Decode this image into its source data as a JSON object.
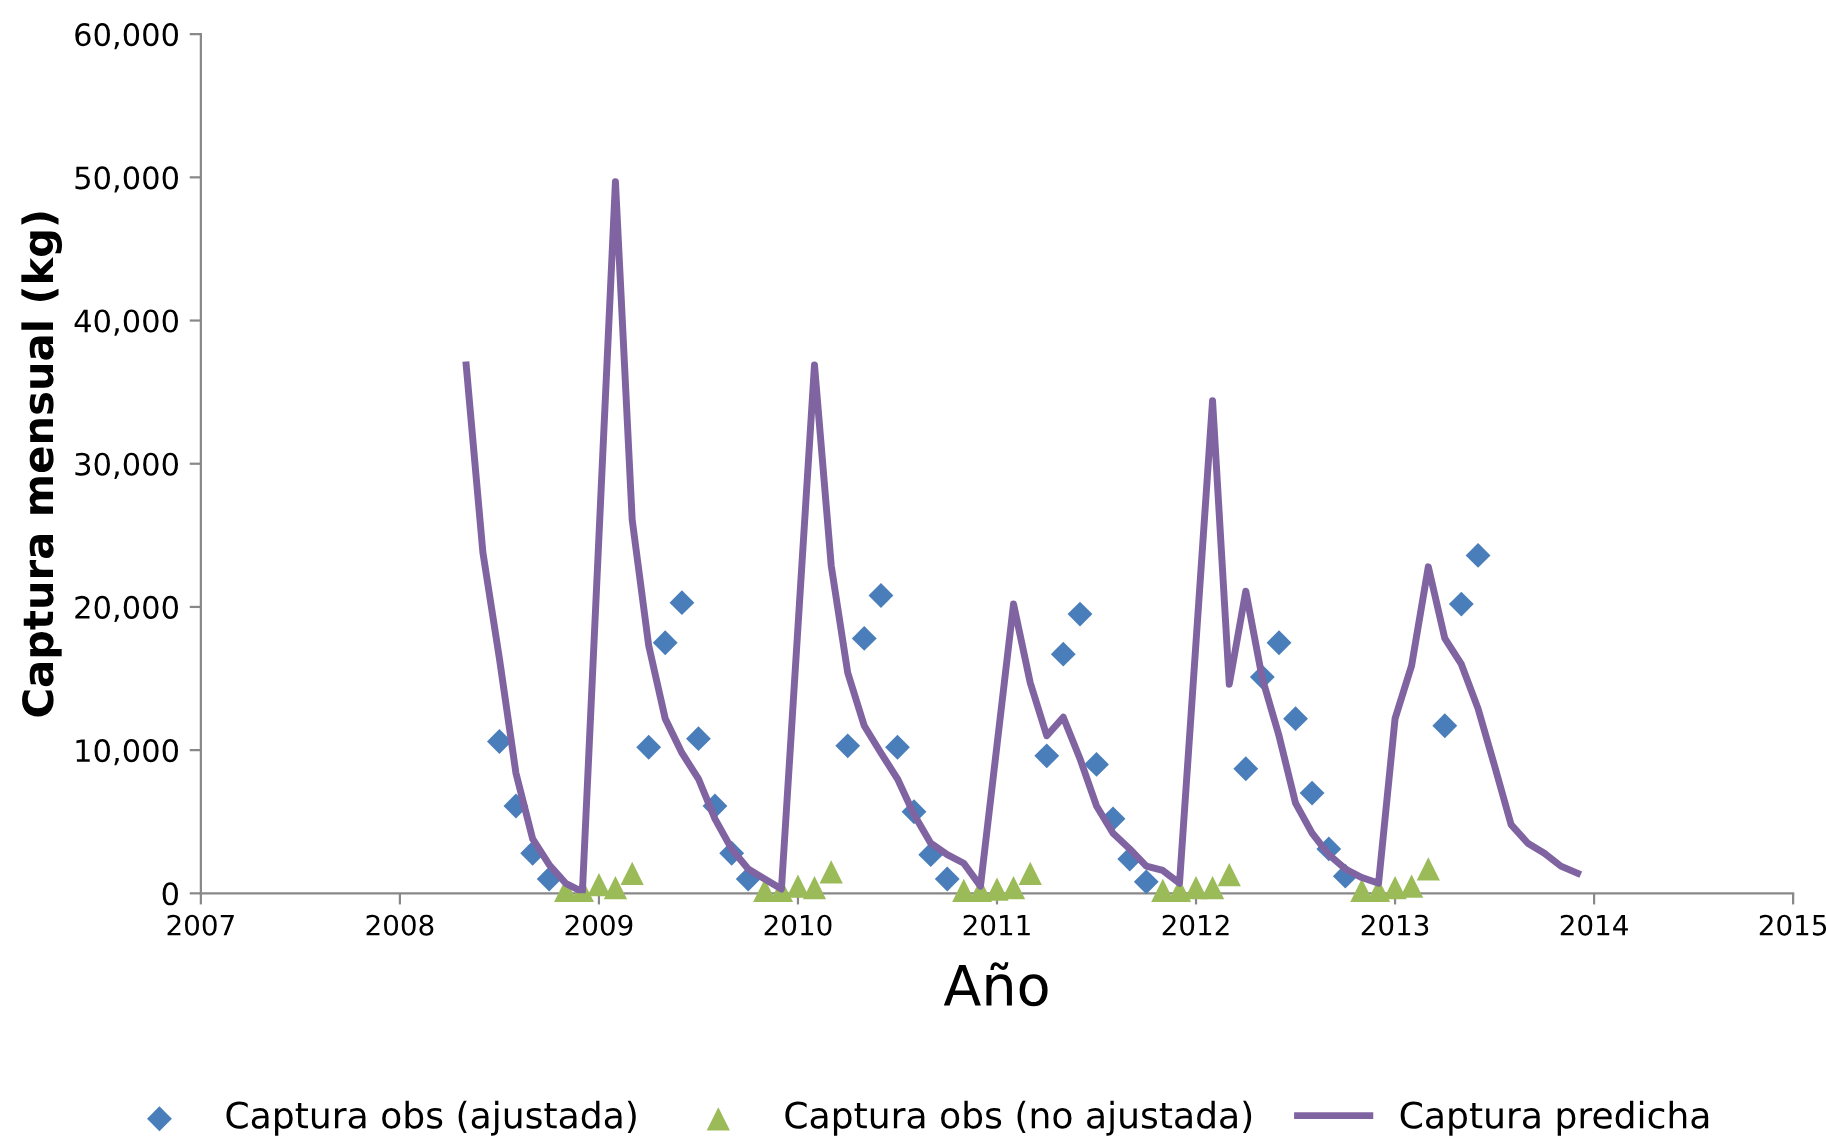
{
  "chart_data": {
    "type": "scatter",
    "xlabel": "Año",
    "ylabel": "Captura mensual (kg)",
    "xlim": [
      2007,
      2015
    ],
    "xticks": [
      2007,
      2008,
      2009,
      2010,
      2011,
      2012,
      2013,
      2014,
      2015
    ],
    "ylim": [
      0,
      60000
    ],
    "yticks": [
      {
        "value": 0,
        "label": "0"
      },
      {
        "value": 10000,
        "label": "10,000"
      },
      {
        "value": 20000,
        "label": "20,000"
      },
      {
        "value": 30000,
        "label": "30,000"
      },
      {
        "value": 40000,
        "label": "40,000"
      },
      {
        "value": 50000,
        "label": "50,000"
      },
      {
        "value": 60000,
        "label": "60,000"
      }
    ],
    "grid": false,
    "legend": "bottom",
    "series": [
      {
        "name": "Captura obs (ajustada)",
        "marker": "diamond",
        "color": "#4a7ebb",
        "x": [
          2008.5,
          2008.583,
          2008.667,
          2008.75,
          2009.25,
          2009.333,
          2009.417,
          2009.5,
          2009.583,
          2009.667,
          2009.75,
          2010.25,
          2010.333,
          2010.417,
          2010.5,
          2010.583,
          2010.667,
          2010.75,
          2011.25,
          2011.333,
          2011.417,
          2011.5,
          2011.583,
          2011.667,
          2011.75,
          2012.25,
          2012.333,
          2012.417,
          2012.5,
          2012.583,
          2012.667,
          2012.75,
          2013.25,
          2013.333,
          2013.417
        ],
        "values": [
          10600,
          6100,
          2800,
          1000,
          10200,
          17500,
          20300,
          10800,
          6100,
          2800,
          1000,
          10300,
          17800,
          20800,
          10200,
          5700,
          2700,
          1000,
          9600,
          16700,
          19500,
          9000,
          5200,
          2400,
          800,
          8700,
          15100,
          17500,
          12200,
          7000,
          3100,
          1200,
          11700,
          20200,
          23600
        ]
      },
      {
        "name": "Captura obs (no ajustada)",
        "marker": "triangle",
        "color": "#9bbb59",
        "x": [
          2008.833,
          2008.917,
          2009.0,
          2009.083,
          2009.167,
          2009.833,
          2009.917,
          2010.0,
          2010.083,
          2010.167,
          2010.833,
          2010.917,
          2011.0,
          2011.083,
          2011.167,
          2011.833,
          2011.917,
          2012.0,
          2012.083,
          2012.167,
          2012.833,
          2012.917,
          2013.0,
          2013.083,
          2013.167
        ],
        "values": [
          200,
          200,
          600,
          400,
          1400,
          200,
          200,
          500,
          400,
          1500,
          200,
          200,
          300,
          400,
          1400,
          200,
          200,
          400,
          400,
          1300,
          200,
          200,
          400,
          500,
          1700
        ]
      },
      {
        "name": "Captura predicha",
        "type": "line",
        "marker": "none",
        "line_style": "solid",
        "color": "#8064a2",
        "x": [
          2008.333,
          2008.417,
          2008.5,
          2008.583,
          2008.667,
          2008.75,
          2008.833,
          2008.917,
          2009.083,
          2009.167,
          2009.25,
          2009.333,
          2009.417,
          2009.5,
          2009.583,
          2009.667,
          2009.75,
          2009.833,
          2009.917,
          2010.083,
          2010.167,
          2010.25,
          2010.333,
          2010.417,
          2010.5,
          2010.583,
          2010.667,
          2010.75,
          2010.833,
          2010.917,
          2011.083,
          2011.167,
          2011.25,
          2011.333,
          2011.417,
          2011.5,
          2011.583,
          2011.667,
          2011.75,
          2011.833,
          2011.917,
          2012.083,
          2012.167,
          2012.25,
          2012.333,
          2012.417,
          2012.5,
          2012.583,
          2012.667,
          2012.75,
          2012.833,
          2012.917,
          2013.0,
          2013.083,
          2013.167,
          2013.25,
          2013.333,
          2013.417,
          2013.5,
          2013.583,
          2013.667,
          2013.75,
          2013.833,
          2013.917
        ],
        "values": [
          36900,
          23800,
          16400,
          8400,
          3800,
          2000,
          700,
          100,
          49700,
          26100,
          17300,
          12200,
          9800,
          8000,
          5200,
          3100,
          1700,
          1000,
          300,
          36900,
          22900,
          15400,
          11700,
          9800,
          8000,
          5500,
          3500,
          2700,
          2100,
          500,
          20200,
          14700,
          11000,
          12300,
          9400,
          6100,
          4200,
          3100,
          1900,
          1600,
          700,
          34400,
          14600,
          21100,
          15000,
          11000,
          6300,
          4200,
          2700,
          1700,
          1100,
          700,
          12200,
          15900,
          22800,
          17800,
          16000,
          12900,
          8900,
          4800,
          3500,
          2800,
          1900,
          1400
        ]
      }
    ]
  }
}
